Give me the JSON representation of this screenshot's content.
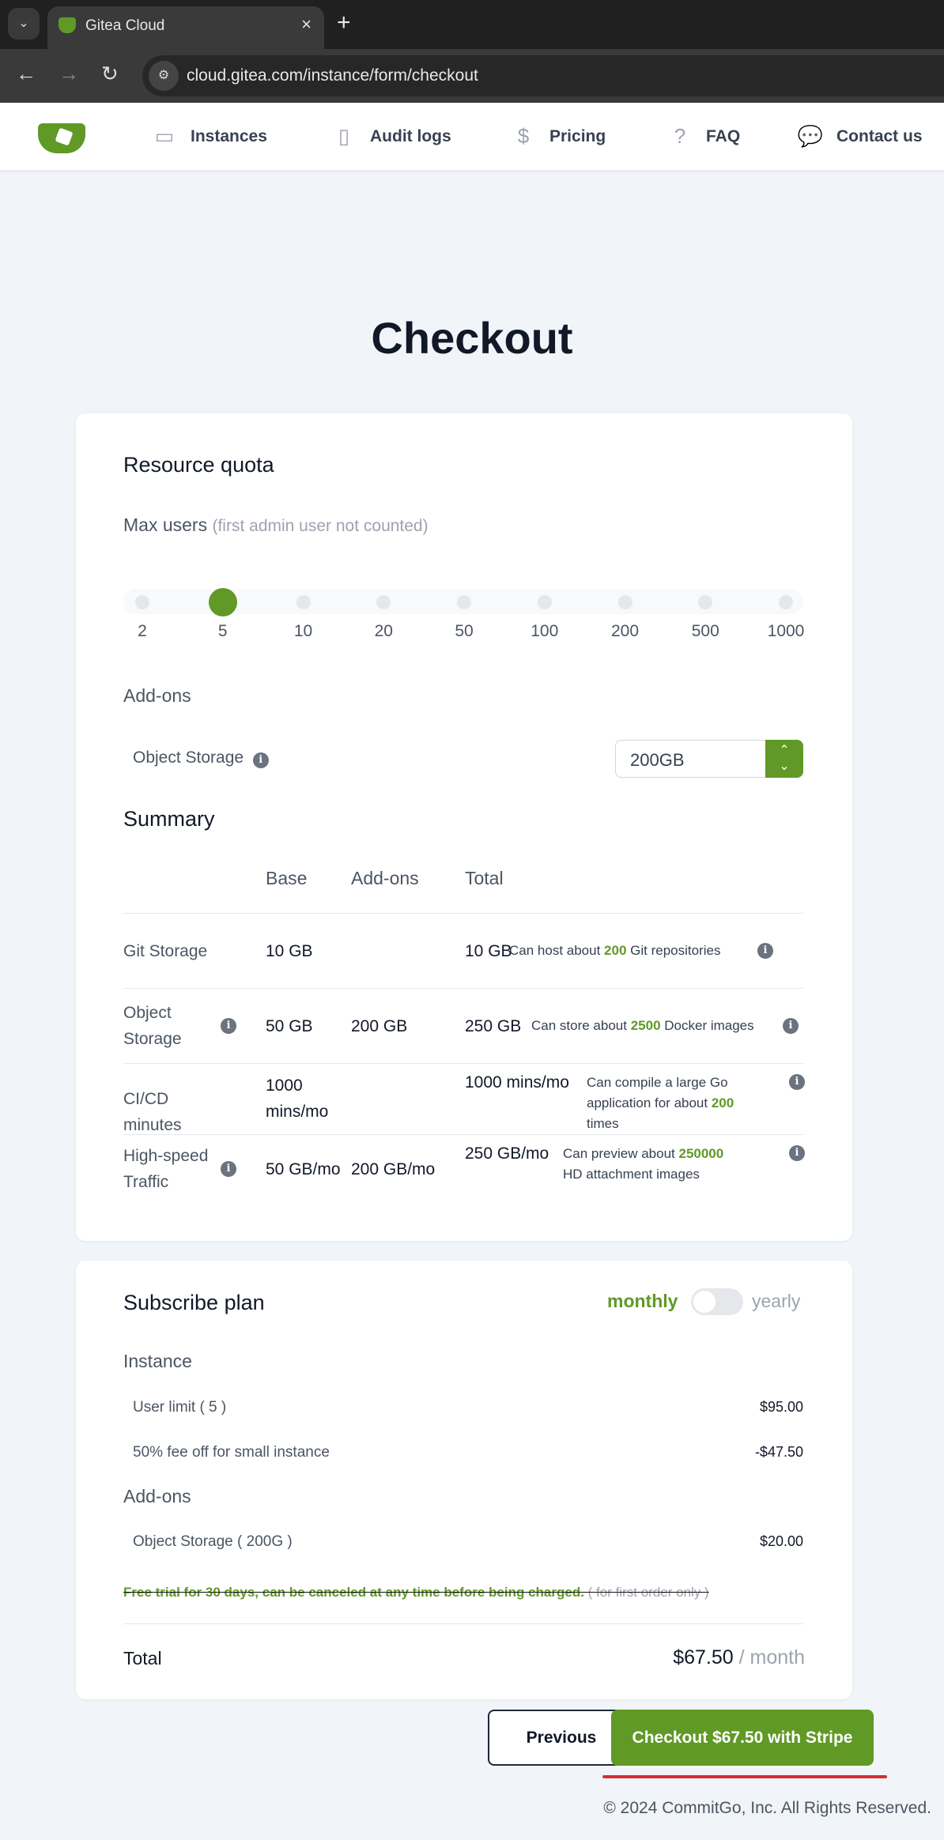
{
  "browser": {
    "tab_title": "Gitea Cloud",
    "url": "cloud.gitea.com/instance/form/checkout"
  },
  "nav": {
    "items": [
      {
        "label": "Instances",
        "icon": "server-icon"
      },
      {
        "label": "Audit logs",
        "icon": "clipboard-icon"
      },
      {
        "label": "Pricing",
        "icon": "dollar-icon"
      },
      {
        "label": "FAQ",
        "icon": "question-icon"
      },
      {
        "label": "Contact us",
        "icon": "chat-icon"
      }
    ]
  },
  "page": {
    "title": "Checkout"
  },
  "quota": {
    "title": "Resource quota",
    "max_users_label": "Max users",
    "max_users_note": "(first admin user not counted)",
    "options": [
      "2",
      "5",
      "10",
      "20",
      "50",
      "100",
      "200",
      "500",
      "1000"
    ],
    "selected": "5",
    "addons_title": "Add-ons",
    "object_storage_label": "Object Storage",
    "object_storage_value": "200GB"
  },
  "summary": {
    "title": "Summary",
    "headers": [
      "Base",
      "Add-ons",
      "Total"
    ],
    "rows": [
      {
        "name": "Git Storage",
        "base": "10 GB",
        "addon": "",
        "total": "10 GB",
        "note_pre": "Can host about ",
        "note_num": "200",
        "note_post": " Git repositories"
      },
      {
        "name": "Object Storage",
        "base": "50 GB",
        "addon": "200 GB",
        "total": "250 GB",
        "note_pre": "Can store about ",
        "note_num": "2500",
        "note_post": " Docker images"
      },
      {
        "name": "CI/CD minutes",
        "base": "1000 mins/mo",
        "addon": "",
        "total": "1000 mins/mo",
        "note_pre": "Can compile a large Go application for about ",
        "note_num": "200",
        "note_post": " times"
      },
      {
        "name": "High-speed Traffic",
        "base": "50 GB/mo",
        "addon": "200 GB/mo",
        "total": "250 GB/mo",
        "note_pre": "Can preview about ",
        "note_num": "250000",
        "note_post": " HD attachment images"
      }
    ]
  },
  "plan": {
    "title": "Subscribe plan",
    "monthly": "monthly",
    "yearly": "yearly",
    "billing": "monthly",
    "instance_title": "Instance",
    "user_limit": "User limit ( 5 )",
    "user_limit_price": "$95.00",
    "discount": "50% fee off for small instance",
    "discount_price": "-$47.50",
    "addons_title": "Add-ons",
    "object_storage": "Object Storage ( 200G )",
    "object_storage_price": "$20.00",
    "trial": "Free trial for 30 days, can be canceled at any time before being charged.",
    "trial_note": "( for first order only )",
    "total_label": "Total",
    "total": "$67.50",
    "total_period": "/ month"
  },
  "actions": {
    "previous": "Previous",
    "checkout": "Checkout $67.50 with Stripe"
  },
  "footer": "© 2024 CommitGo, Inc. All Rights Reserved.",
  "colors": {
    "brand": "#609926"
  }
}
